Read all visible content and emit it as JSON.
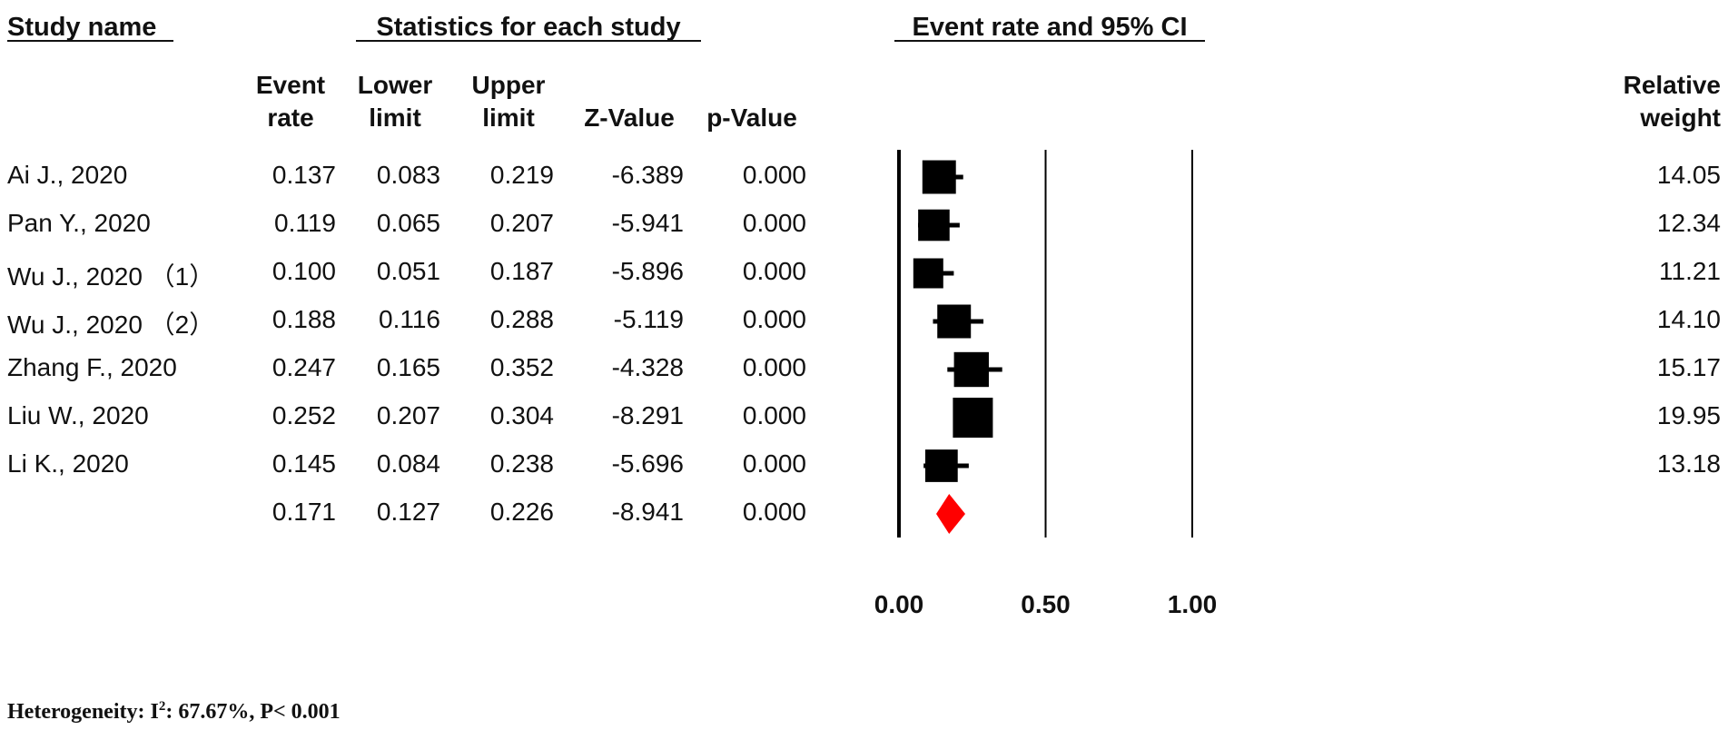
{
  "headers": {
    "study_name": "Study name",
    "stats": "Statistics for each study",
    "plot": "Event rate and 95% CI"
  },
  "columns": {
    "event_rate": [
      "Event",
      "rate"
    ],
    "lower": [
      "Lower",
      "limit"
    ],
    "upper": [
      "Upper",
      "limit"
    ],
    "z": "Z-Value",
    "p": "p-Value",
    "weight": [
      "Relative",
      "weight"
    ]
  },
  "rows": [
    {
      "study": "Ai J., 2020",
      "event_rate": "0.137",
      "lower": "0.083",
      "upper": "0.219",
      "z": "-6.389",
      "p": "0.000",
      "weight": "14.05"
    },
    {
      "study": "Pan Y., 2020",
      "event_rate": "0.119",
      "lower": "0.065",
      "upper": "0.207",
      "z": "-5.941",
      "p": "0.000",
      "weight": "12.34"
    },
    {
      "study": "Wu J., 2020 （1）",
      "event_rate": "0.100",
      "lower": "0.051",
      "upper": "0.187",
      "z": "-5.896",
      "p": "0.000",
      "weight": "11.21"
    },
    {
      "study": "Wu J., 2020 （2）",
      "event_rate": "0.188",
      "lower": "0.116",
      "upper": "0.288",
      "z": "-5.119",
      "p": "0.000",
      "weight": "14.10"
    },
    {
      "study": "Zhang F., 2020",
      "event_rate": "0.247",
      "lower": "0.165",
      "upper": "0.352",
      "z": "-4.328",
      "p": "0.000",
      "weight": "15.17"
    },
    {
      "study": "Liu W., 2020",
      "event_rate": "0.252",
      "lower": "0.207",
      "upper": "0.304",
      "z": "-8.291",
      "p": "0.000",
      "weight": "19.95"
    },
    {
      "study": "Li K., 2020",
      "event_rate": "0.145",
      "lower": "0.084",
      "upper": "0.238",
      "z": "-5.696",
      "p": "0.000",
      "weight": "13.18"
    }
  ],
  "summary": {
    "event_rate": "0.171",
    "lower": "0.127",
    "upper": "0.226",
    "z": "-8.941",
    "p": "0.000"
  },
  "footnote": {
    "prefix": "Heterogeneity:  I",
    "sup": "2",
    "suffix": ": 67.67%, P< 0.001"
  },
  "colors": {
    "marker": "#000000",
    "diamond": "#ff0000",
    "lines": "#000000"
  },
  "chart_data": {
    "type": "forest",
    "xlim": [
      0,
      1
    ],
    "xticks": [
      "0.00",
      "0.50",
      "1.00"
    ],
    "reference_lines": [
      0,
      0.5,
      1
    ],
    "points": [
      {
        "label": "Ai J., 2020",
        "estimate": 0.137,
        "lower": 0.083,
        "upper": 0.219,
        "weight": 14.05
      },
      {
        "label": "Pan Y., 2020",
        "estimate": 0.119,
        "lower": 0.065,
        "upper": 0.207,
        "weight": 12.34
      },
      {
        "label": "Wu J., 2020 （1）",
        "estimate": 0.1,
        "lower": 0.051,
        "upper": 0.187,
        "weight": 11.21
      },
      {
        "label": "Wu J., 2020 （2）",
        "estimate": 0.188,
        "lower": 0.116,
        "upper": 0.288,
        "weight": 14.1
      },
      {
        "label": "Zhang F., 2020",
        "estimate": 0.247,
        "lower": 0.165,
        "upper": 0.352,
        "weight": 15.17
      },
      {
        "label": "Liu W., 2020",
        "estimate": 0.252,
        "lower": 0.207,
        "upper": 0.304,
        "weight": 19.95
      },
      {
        "label": "Li K., 2020",
        "estimate": 0.145,
        "lower": 0.084,
        "upper": 0.238,
        "weight": 13.18
      }
    ],
    "pooled": {
      "estimate": 0.171,
      "lower": 0.127,
      "upper": 0.226
    }
  }
}
